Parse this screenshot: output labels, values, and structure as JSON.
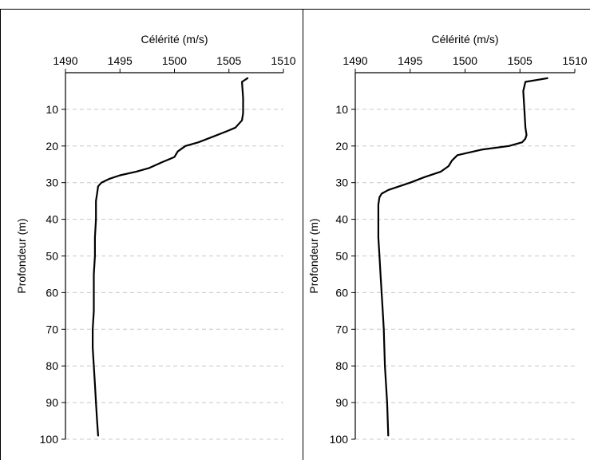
{
  "chart_data": [
    {
      "type": "line",
      "xlabel": "Célérité (m/s)",
      "ylabel": "Profondeur (m)",
      "xlim": [
        1490,
        1510
      ],
      "ylim": [
        0,
        100
      ],
      "y_inverted": true,
      "x_axis_position": "top",
      "xticks": [
        "1490",
        "1495",
        "1500",
        "1505",
        "1510"
      ],
      "yticks": [
        "10",
        "20",
        "30",
        "40",
        "50",
        "60",
        "70",
        "80",
        "90",
        "100"
      ],
      "grid": "horizontal-dashed",
      "series": [
        {
          "x": [
            1506.7,
            1506.2,
            1506.3,
            1506.3,
            1506.2,
            1505.6,
            1504.8,
            1503.5,
            1502.2,
            1501.0,
            1500.3,
            1500.0,
            1498.8,
            1497.7,
            1496.5,
            1495.0,
            1494.0,
            1493.3,
            1493.0,
            1492.9,
            1492.8,
            1492.8,
            1492.7,
            1492.7,
            1492.6,
            1492.6,
            1492.6,
            1492.5,
            1492.5,
            1492.6,
            1492.7,
            1492.8,
            1492.9,
            1493.0
          ],
          "y": [
            1.5,
            2.5,
            7,
            11,
            13,
            15,
            16,
            17.5,
            19,
            20,
            21.5,
            23,
            24.5,
            26,
            27,
            28,
            29,
            30,
            31,
            33,
            35,
            40,
            45,
            50,
            55,
            60,
            65,
            70,
            75,
            80,
            85,
            90,
            95,
            99
          ]
        }
      ]
    },
    {
      "type": "line",
      "xlabel": "Célérité (m/s)",
      "ylabel": "Profondeur (m)",
      "xlim": [
        1490,
        1510
      ],
      "ylim": [
        0,
        100
      ],
      "y_inverted": true,
      "x_axis_position": "top",
      "xticks": [
        "1490",
        "1495",
        "1500",
        "1505",
        "1510"
      ],
      "yticks": [
        "10",
        "20",
        "30",
        "40",
        "50",
        "60",
        "70",
        "80",
        "90",
        "100"
      ],
      "grid": "horizontal-dashed",
      "series": [
        {
          "x": [
            1507.5,
            1505.5,
            1505.3,
            1505.4,
            1505.5,
            1505.6,
            1505.5,
            1505.2,
            1504.0,
            1501.5,
            1499.3,
            1498.8,
            1498.5,
            1497.8,
            1496.3,
            1495.0,
            1494.0,
            1493.0,
            1492.4,
            1492.2,
            1492.1,
            1492.1,
            1492.1,
            1492.2,
            1492.3,
            1492.4,
            1492.5,
            1492.6,
            1492.7,
            1492.8,
            1492.9,
            1493.0
          ],
          "y": [
            1.5,
            2.5,
            5,
            10,
            15,
            17,
            18,
            19,
            20,
            21,
            22.5,
            24,
            25.5,
            27,
            28.5,
            30,
            31,
            32,
            33,
            34,
            36,
            40,
            45,
            50,
            55,
            60,
            65,
            70,
            80,
            85,
            90,
            99
          ]
        }
      ]
    }
  ]
}
